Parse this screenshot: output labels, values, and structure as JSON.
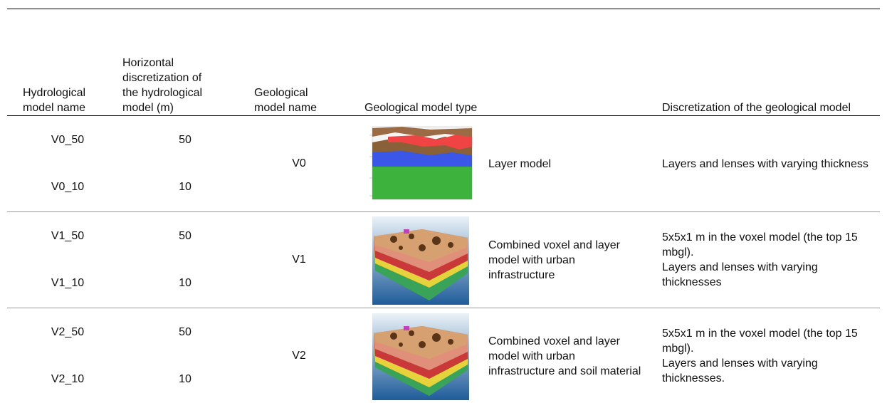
{
  "table": {
    "header": [
      "Hydrological model name",
      "Horizontal discretization of the hydrological model (m)",
      "Geological model name",
      "Geological model type",
      "Discretization of the geological model"
    ],
    "rows": [
      {
        "hydro_names": [
          "V0_50",
          "V0_10"
        ],
        "discretization": [
          "50",
          "10"
        ],
        "geo_name": "V0",
        "geo_type": "Layer model",
        "geo_discretization": [
          "Layers and lenses with varying thickness"
        ]
      },
      {
        "hydro_names": [
          "V1_50",
          "V1_10"
        ],
        "discretization": [
          "50",
          "10"
        ],
        "geo_name": "V1",
        "geo_type": "Combined voxel and layer model with urban infrastructure",
        "geo_discretization": [
          "5x5x1 m in the voxel model (the top 15 mbgl).",
          "Layers and lenses with varying thicknesses"
        ]
      },
      {
        "hydro_names": [
          "V2_50",
          "V2_10"
        ],
        "discretization": [
          "50",
          "10"
        ],
        "geo_name": "V2",
        "geo_type": "Combined voxel and layer model with urban infrastructure and soil material",
        "geo_discretization": [
          "5x5x1 m in the voxel model (the top 15 mbgl).",
          "Layers and lenses with varying thicknesses."
        ]
      }
    ]
  }
}
